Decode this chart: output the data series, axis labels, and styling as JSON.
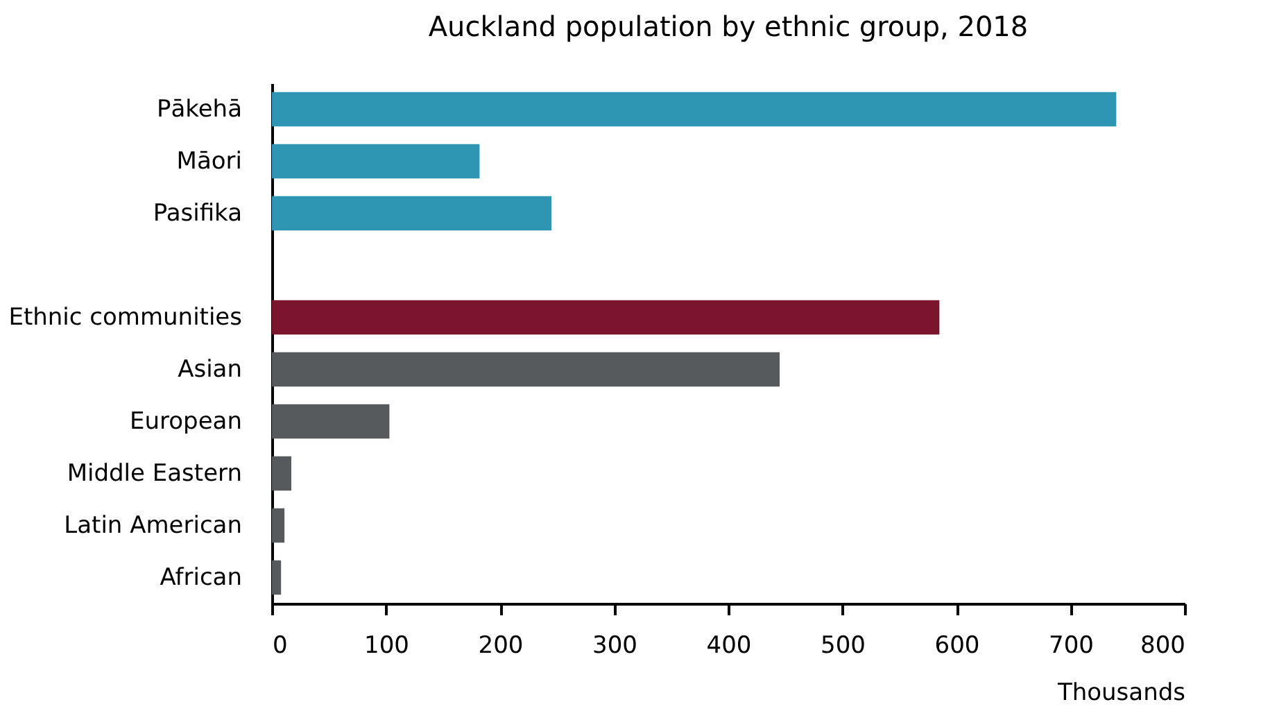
{
  "chart_data": {
    "type": "bar",
    "orientation": "horizontal",
    "title": "Auckland population by ethnic group, 2018",
    "xlabel": "Thousands",
    "categories": [
      "Pākehā",
      "Māori",
      "Pasifika",
      null,
      "Ethnic communities",
      "Asian",
      "European",
      "Middle Eastern",
      "Latin American",
      "African"
    ],
    "values": [
      740,
      182,
      245,
      null,
      585,
      445,
      103,
      17,
      11,
      8
    ],
    "colors": [
      "#2e95b2",
      "#2e95b2",
      "#2e95b2",
      "#2e95b2",
      "#7b152d",
      "#565a5d",
      "#565a5d",
      "#565a5d",
      "#565a5d",
      "#565a5d"
    ],
    "xlim": [
      0,
      800
    ],
    "xticks": [
      0,
      100,
      200,
      300,
      400,
      500,
      600,
      700,
      800
    ],
    "grid": false
  }
}
